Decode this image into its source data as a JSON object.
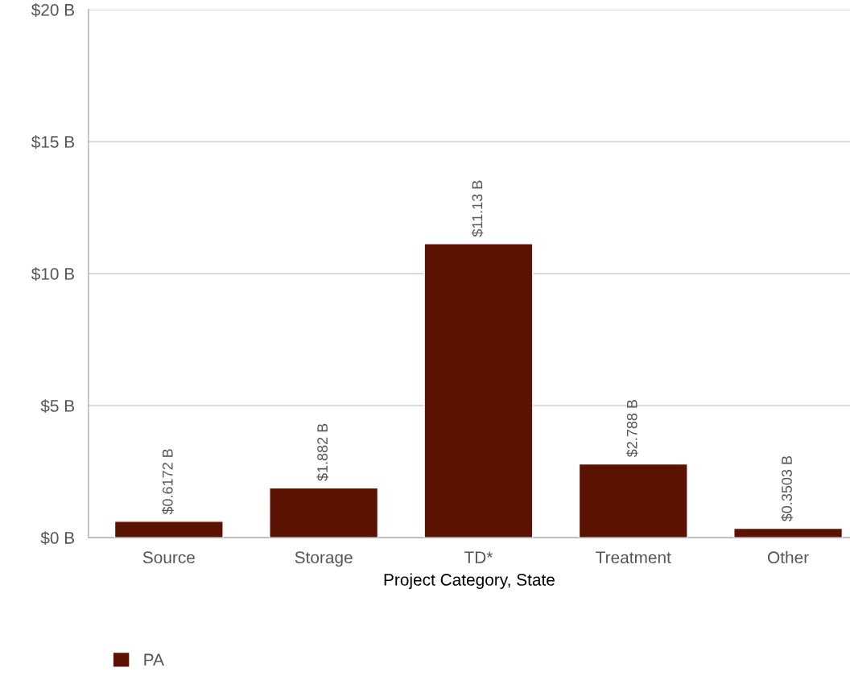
{
  "chart_data": {
    "type": "bar",
    "xlabel": "Project Category, State",
    "categories": [
      "Source",
      "Storage",
      "TD*",
      "Treatment",
      "Other"
    ],
    "series": [
      {
        "name": "PA",
        "color": "#5c1200",
        "values": [
          0.6172,
          1.882,
          11.13,
          2.788,
          0.3503
        ],
        "value_labels": [
          "$0.6172 B",
          "$1.882 B",
          "$11.13 B",
          "$2.788 B",
          "$0.3503 B"
        ]
      }
    ],
    "ylim": [
      0,
      20
    ],
    "yticks": [
      {
        "value": 0,
        "label": "$0 B"
      },
      {
        "value": 5,
        "label": "$5 B"
      },
      {
        "value": 10,
        "label": "$10 B"
      },
      {
        "value": 15,
        "label": "$15 B"
      },
      {
        "value": 20,
        "label": "$20 B"
      }
    ],
    "grid": "y",
    "legend": "bottom left"
  }
}
